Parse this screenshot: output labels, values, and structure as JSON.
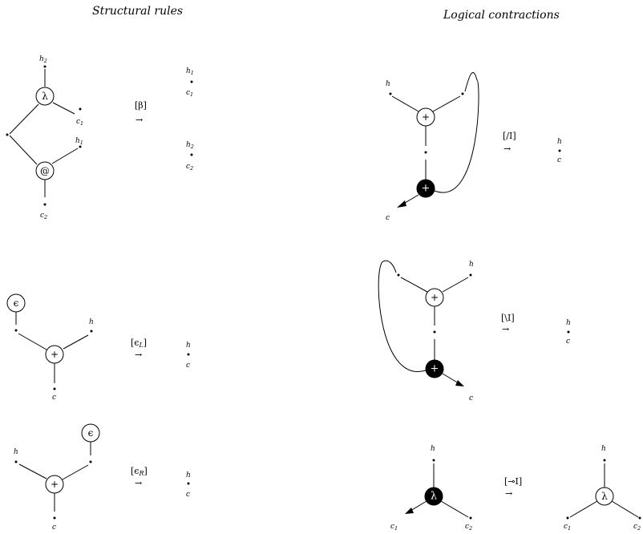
{
  "headings": {
    "structural": "Structural rules",
    "logical": "Logical contractions"
  },
  "symbols": {
    "lambda": "λ",
    "app": "@",
    "tensor": "+",
    "epsilon": "ϵ"
  },
  "labels": {
    "h": "h",
    "c": "c",
    "idx1": "1",
    "idx2": "2"
  },
  "rules": {
    "beta": "[β]",
    "eps_l": "[ϵ",
    "eps_l_sub": "L",
    "eps_r": "[ϵ",
    "eps_r_sub": "R",
    "slash": "[/I]",
    "backslash": "[\\I]",
    "lollipop": "[⊸I]",
    "close": "]",
    "arrow": "→"
  }
}
